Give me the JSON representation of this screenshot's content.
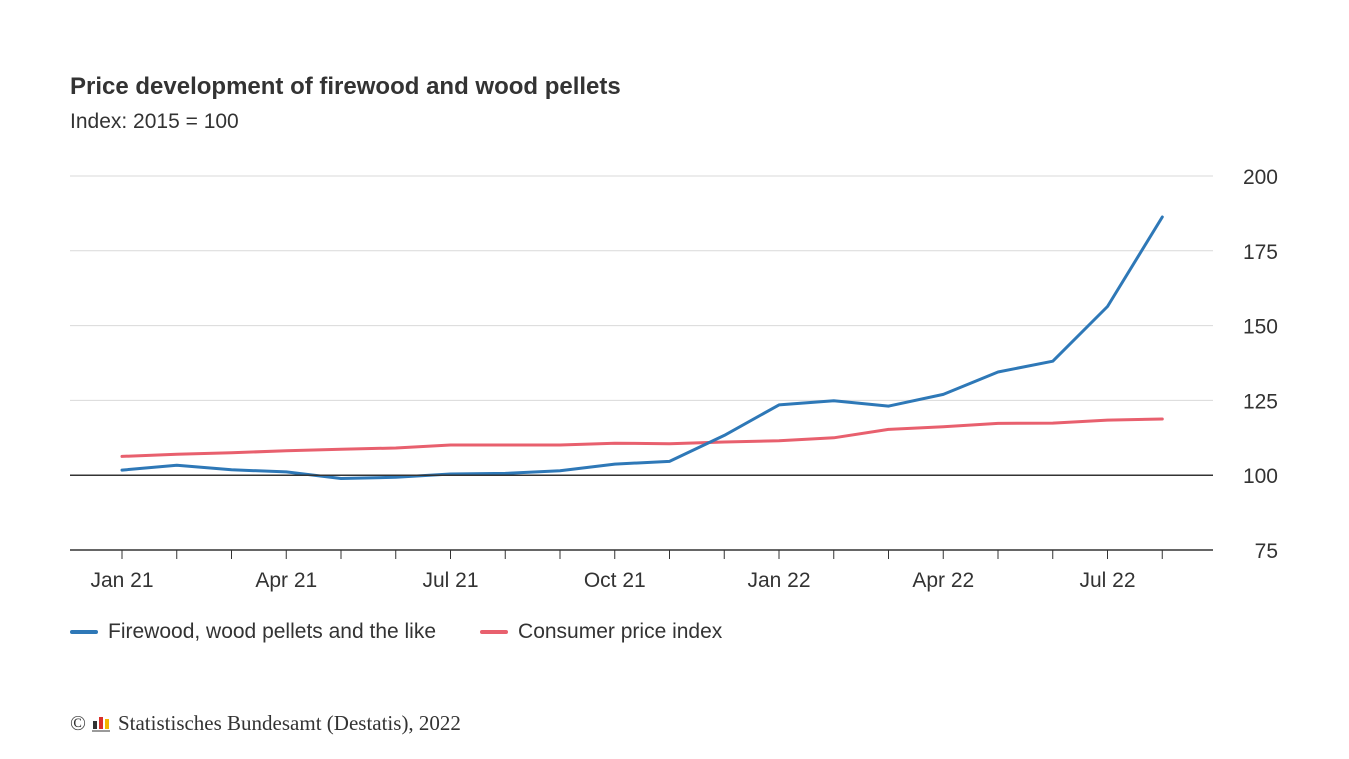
{
  "title": "Price development of firewood and wood pellets",
  "subtitle": "Index: 2015 = 100",
  "footer": {
    "copyright_symbol": "©",
    "source": "Statistisches Bundesamt (Destatis), 2022"
  },
  "colors": {
    "firewood": "#2e78b7",
    "cpi": "#e8606e",
    "grid": "#d9d9d9",
    "axis": "#333333"
  },
  "chart_data": {
    "type": "line",
    "title": "Price development of firewood and wood pellets",
    "subtitle": "Index: 2015 = 100",
    "x": [
      "2021-01",
      "2021-02",
      "2021-03",
      "2021-04",
      "2021-05",
      "2021-06",
      "2021-07",
      "2021-08",
      "2021-09",
      "2021-10",
      "2021-11",
      "2021-12",
      "2022-01",
      "2022-02",
      "2022-03",
      "2022-04",
      "2022-05",
      "2022-06",
      "2022-07",
      "2022-08"
    ],
    "x_tick_labels": [
      "Jan 21",
      "Apr 21",
      "Jul 21",
      "Oct 21",
      "Jan 22",
      "Apr 22",
      "Jul 22"
    ],
    "ylim": [
      75,
      200
    ],
    "y_ticks": [
      75,
      100,
      125,
      150,
      175,
      200
    ],
    "y_axis_position": "right",
    "grid": true,
    "reference_line": 100,
    "legend_position": "bottom-left",
    "series": [
      {
        "name": "Firewood, wood pellets and the like",
        "values": [
          101.7,
          103.3,
          101.8,
          101.1,
          98.9,
          99.3,
          100.4,
          100.6,
          101.5,
          103.7,
          104.6,
          113.3,
          123.5,
          124.9,
          123.1,
          127.0,
          134.5,
          138.1,
          156.4,
          186.3
        ]
      },
      {
        "name": "Consumer price index",
        "values": [
          106.3,
          107.0,
          107.5,
          108.2,
          108.7,
          109.1,
          110.1,
          110.1,
          110.1,
          110.7,
          110.5,
          111.1,
          111.5,
          112.5,
          115.3,
          116.2,
          117.3,
          117.4,
          118.4,
          118.8
        ]
      }
    ]
  }
}
